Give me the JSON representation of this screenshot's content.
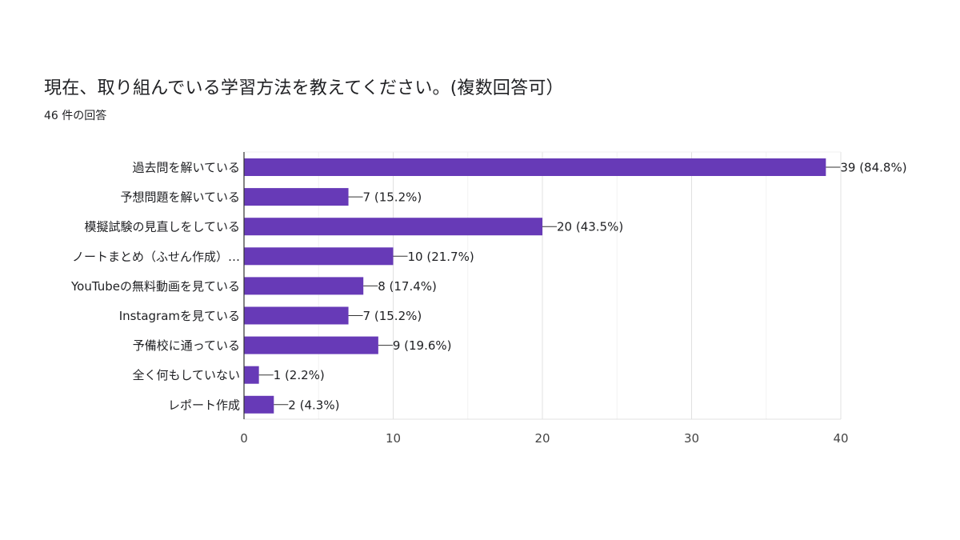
{
  "header": {
    "title": "現在、取り組んでいる学習方法を教えてください。(複数回答可）",
    "response_count": "46 件の回答"
  },
  "colors": {
    "bar": "#673ab7",
    "grid": "#e6e6e6",
    "axis": "#333333"
  },
  "chart_data": {
    "type": "bar",
    "orientation": "horizontal",
    "title": "現在、取り組んでいる学習方法を教えてください。(複数回答可）",
    "categories": [
      "過去問を解いている",
      "予想問題を解いている",
      "模擬試験の見直しをしている",
      "ノートまとめ（ふせん作成）…",
      "YouTubeの無料動画を見ている",
      "Instagramを見ている",
      "予備校に通っている",
      "全く何もしていない",
      "レポート作成"
    ],
    "values": [
      39,
      7,
      20,
      10,
      8,
      7,
      9,
      1,
      2
    ],
    "value_labels": [
      "39 (84.8%)",
      "7 (15.2%)",
      "20 (43.5%)",
      "10 (21.7%)",
      "8 (17.4%)",
      "7 (15.2%)",
      "9 (19.6%)",
      "1 (2.2%)",
      "2 (4.3%)"
    ],
    "xlim": [
      0,
      40
    ],
    "xticks": [
      "0",
      "10",
      "20",
      "30",
      "40"
    ],
    "xlabel": "",
    "ylabel": "",
    "grid": true,
    "legend": "none"
  }
}
